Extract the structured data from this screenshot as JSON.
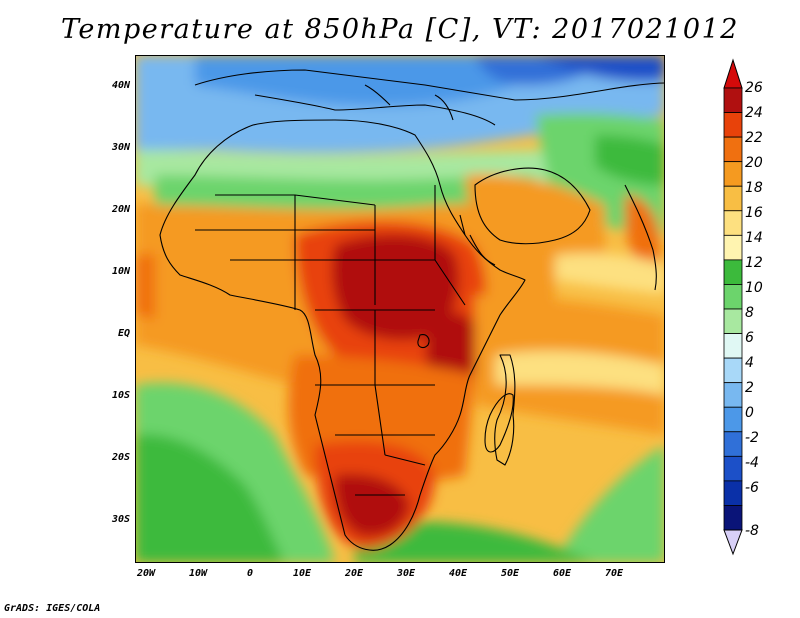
{
  "title": "Temperature at 850hPa [C], VT: 2017021012",
  "lat_labels": [
    "40N",
    "30N",
    "20N",
    "10N",
    "EQ",
    "10S",
    "20S",
    "30S"
  ],
  "lon_labels": [
    "20W",
    "10W",
    "0",
    "10E",
    "20E",
    "30E",
    "40E",
    "50E",
    "60E",
    "70E"
  ],
  "colorbar": {
    "labels": [
      "26",
      "24",
      "22",
      "20",
      "18",
      "16",
      "14",
      "12",
      "10",
      "8",
      "6",
      "4",
      "2",
      "0",
      "-2",
      "-4",
      "-6",
      "-8"
    ],
    "colors": [
      "#b01010",
      "#e8420a",
      "#f07010",
      "#f59a20",
      "#f8be44",
      "#fde080",
      "#fff4b0",
      "#3cba3c",
      "#6cd46c",
      "#a8e8a0",
      "#e0f8f4",
      "#a8d8f8",
      "#78b8f0",
      "#4c98e8",
      "#3070d8",
      "#1c50c8",
      "#0a30a8",
      "#0a1478"
    ],
    "top_arrow_color": "#d40a0a",
    "bottom_arrow_color": "#d8d0f8"
  },
  "footer": "GrADS: IGES/COLA"
}
